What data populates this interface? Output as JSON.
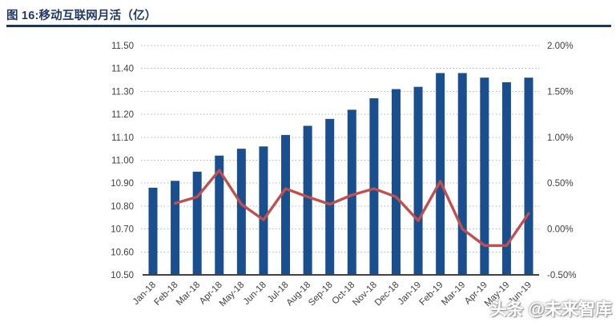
{
  "figure": {
    "title": "图 16:移动互联网月活（亿）",
    "watermark": "头条 @未来智库"
  },
  "chart_data": {
    "type": "combo-bar-line",
    "title": "图 16:移动互联网月活（亿）",
    "categories": [
      "Jan-18",
      "Feb-18",
      "Mar-18",
      "Apr-18",
      "May-18",
      "Jun-18",
      "Jul-18",
      "Aug-18",
      "Sep-18",
      "Oct-18",
      "Nov-18",
      "Dec-18",
      "Jan-19",
      "Feb-19",
      "Mar-19",
      "Apr-19",
      "May-19",
      "Jun-19"
    ],
    "series": [
      {
        "type": "bar",
        "axis": "left",
        "values": [
          10.88,
          10.91,
          10.95,
          11.02,
          11.05,
          11.06,
          11.11,
          11.15,
          11.18,
          11.22,
          11.27,
          11.31,
          11.32,
          11.38,
          11.38,
          11.36,
          11.34,
          11.36
        ]
      },
      {
        "type": "line",
        "axis": "right",
        "unit": "%",
        "values": [
          null,
          0.28,
          0.35,
          0.64,
          0.27,
          0.1,
          0.44,
          0.35,
          0.27,
          0.37,
          0.44,
          0.35,
          0.09,
          0.52,
          0.0,
          -0.18,
          -0.18,
          0.17
        ]
      }
    ],
    "left_axis": {
      "min": 10.5,
      "max": 11.5,
      "tick_labels": [
        "11.50",
        "11.40",
        "11.30",
        "11.20",
        "11.10",
        "11.00",
        "10.90",
        "10.80",
        "10.70",
        "10.60",
        "10.50"
      ]
    },
    "right_axis": {
      "min": -0.5,
      "max": 2.0,
      "tick_labels": [
        "2.00%",
        "1.50%",
        "1.00%",
        "0.50%",
        "0.00%",
        "-0.50%"
      ]
    },
    "grid": "horizontal-dotted",
    "legend": "none",
    "colors": {
      "bar": "#194F8E",
      "line": "#C0504D",
      "title": "#1F3864",
      "rule": "#17375E",
      "tick_text": "#3F3F3F",
      "gridline": "#B3B3B3",
      "axis_line": "#404040"
    }
  }
}
